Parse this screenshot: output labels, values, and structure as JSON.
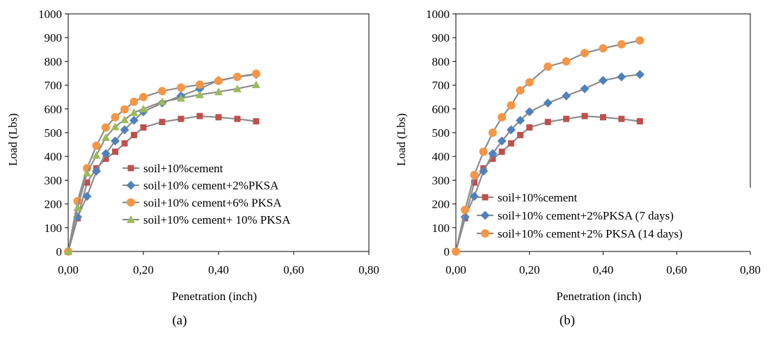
{
  "chart_data": [
    {
      "type": "line",
      "panel_label": "(a)",
      "xlabel": "Penetration (inch)",
      "ylabel": "Load (Lbs)",
      "xlim": [
        0,
        0.8
      ],
      "ylim": [
        0,
        1000
      ],
      "xticks": [
        "0,00",
        "0,20",
        "0,40",
        "0,60",
        "0,80"
      ],
      "yticks": [
        "0",
        "100",
        "200",
        "300",
        "400",
        "500",
        "600",
        "700",
        "800",
        "900",
        "1000"
      ],
      "grid": false,
      "legend_position": "right",
      "x": [
        0,
        0.025,
        0.05,
        0.075,
        0.1,
        0.125,
        0.15,
        0.175,
        0.2,
        0.25,
        0.3,
        0.35,
        0.4,
        0.45,
        0.5
      ],
      "series": [
        {
          "name": "soil+10%cement",
          "color": "#c0504d",
          "marker": "square",
          "values": [
            0,
            140,
            290,
            350,
            390,
            420,
            455,
            490,
            522,
            545,
            558,
            570,
            565,
            558,
            548
          ]
        },
        {
          "name": "soil+10% cement+2%PKSA",
          "color": "#4f81bd",
          "marker": "diamond",
          "values": [
            0,
            145,
            232,
            338,
            412,
            465,
            512,
            552,
            588,
            625,
            655,
            685,
            720,
            735,
            745
          ]
        },
        {
          "name": "soil+10% cement+6% PKSA",
          "color": "#f79646",
          "marker": "circle",
          "values": [
            0,
            212,
            350,
            445,
            522,
            565,
            598,
            630,
            650,
            675,
            690,
            702,
            718,
            735,
            748
          ]
        },
        {
          "name": "soil+10% cement+ 10% PKSA",
          "color": "#9bbb59",
          "marker": "triangle",
          "values": [
            0,
            185,
            330,
            405,
            480,
            525,
            555,
            585,
            600,
            630,
            645,
            660,
            672,
            685,
            702
          ]
        }
      ]
    },
    {
      "type": "line",
      "panel_label": "(b)",
      "xlabel": "Penetration (inch)",
      "ylabel": "Load (Lbs)",
      "xlim": [
        0,
        0.8
      ],
      "ylim": [
        0,
        1000
      ],
      "xticks": [
        "0,00",
        "0,20",
        "0,40",
        "0,60",
        "0,80"
      ],
      "yticks": [
        "0",
        "100",
        "200",
        "300",
        "400",
        "500",
        "600",
        "700",
        "800",
        "900",
        "1000"
      ],
      "grid": false,
      "legend_position": "bottom-right",
      "x": [
        0,
        0.025,
        0.05,
        0.075,
        0.1,
        0.125,
        0.15,
        0.175,
        0.2,
        0.25,
        0.3,
        0.35,
        0.4,
        0.45,
        0.5
      ],
      "series": [
        {
          "name": "soil+10%cement",
          "color": "#c0504d",
          "marker": "square",
          "values": [
            0,
            140,
            290,
            350,
            390,
            420,
            455,
            490,
            522,
            545,
            558,
            570,
            565,
            558,
            548
          ]
        },
        {
          "name": "soil+10% cement+2%PKSA (7 days)",
          "color": "#4f81bd",
          "marker": "diamond",
          "values": [
            0,
            145,
            232,
            338,
            412,
            465,
            512,
            552,
            588,
            625,
            655,
            685,
            720,
            735,
            745
          ]
        },
        {
          "name": "soil+10% cement+2% PKSA (14 days)",
          "color": "#f79646",
          "marker": "circle",
          "values": [
            0,
            175,
            322,
            420,
            500,
            565,
            615,
            678,
            712,
            778,
            800,
            835,
            855,
            872,
            888
          ]
        }
      ]
    }
  ]
}
